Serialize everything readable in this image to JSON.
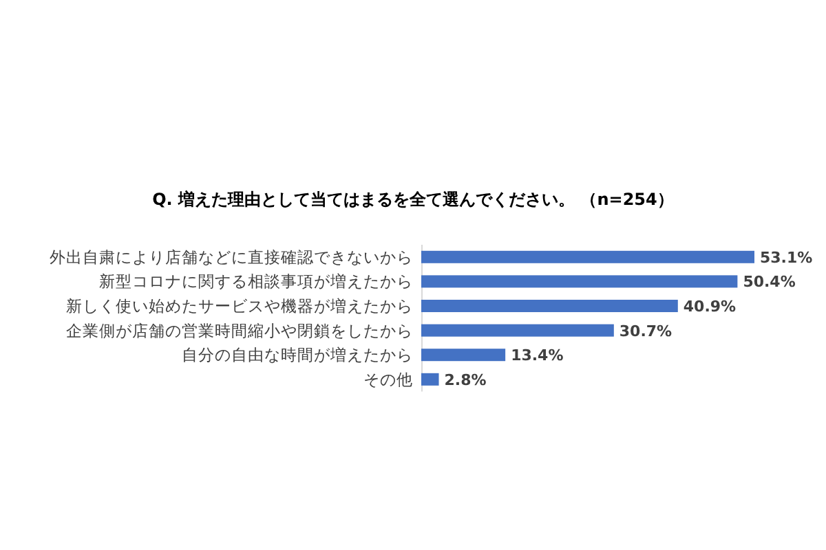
{
  "chart_data": {
    "type": "bar",
    "orientation": "horizontal",
    "title": "Q. 増えた理由として当てはまるを全て選んでください。 （n=254）",
    "categories": [
      "外出自粛により店舗などに直接確認できないから",
      "新型コロナに関する相談事項が増えたから",
      "新しく使い始めたサービスや機器が増えたから",
      "企業側が店舗の営業時間縮小や閉鎖をしたから",
      "自分の自由な時間が増えたから",
      "その他"
    ],
    "values": [
      53.1,
      50.4,
      40.9,
      30.7,
      13.4,
      2.8
    ],
    "color": "#4472c4",
    "value_labels": [
      "53.1%",
      "50.4%",
      "40.9%",
      "30.7%",
      "13.4%",
      "2.8%"
    ]
  }
}
